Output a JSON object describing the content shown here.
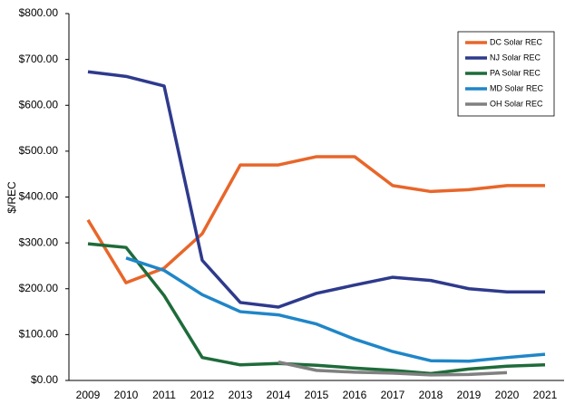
{
  "chart_data": {
    "type": "line",
    "y_label": "$/REC",
    "categories": [
      "2009",
      "2010",
      "2011",
      "2012",
      "2013",
      "2014",
      "2015",
      "2016",
      "2017",
      "2018",
      "2019",
      "2020",
      "2021"
    ],
    "series": [
      {
        "name": "DC Solar REC",
        "color": "#e8662a",
        "values": [
          350,
          213,
          245,
          320,
          470,
          470,
          488,
          488,
          425,
          412,
          416,
          425,
          425
        ]
      },
      {
        "name": "NJ Solar REC",
        "color": "#2e3a8c",
        "values": [
          673,
          663,
          642,
          262,
          170,
          160,
          190,
          208,
          225,
          218,
          200,
          193,
          193
        ]
      },
      {
        "name": "PA Solar REC",
        "color": "#1e6b3a",
        "values": [
          298,
          290,
          185,
          50,
          34,
          37,
          33,
          27,
          22,
          15,
          25,
          31,
          34
        ]
      },
      {
        "name": "MD Solar REC",
        "color": "#1f86c8",
        "values": [
          null,
          267,
          240,
          187,
          150,
          143,
          123,
          90,
          63,
          43,
          42,
          50,
          57
        ]
      },
      {
        "name": "OH Solar REC",
        "color": "#808080",
        "values": [
          null,
          null,
          null,
          null,
          null,
          40,
          22,
          18,
          16,
          12,
          13,
          17,
          null
        ]
      }
    ],
    "ylim": [
      0,
      800
    ],
    "yticks": [
      {
        "value": 0,
        "label": "$0.00"
      },
      {
        "value": 100,
        "label": "$100.00"
      },
      {
        "value": 200,
        "label": "$200.00"
      },
      {
        "value": 300,
        "label": "$300.00"
      },
      {
        "value": 400,
        "label": "$400.00"
      },
      {
        "value": 500,
        "label": "$500.00"
      },
      {
        "value": 600,
        "label": "$600.00"
      },
      {
        "value": 700,
        "label": "$700.00"
      },
      {
        "value": 800,
        "label": "$800.00"
      }
    ],
    "grid": false,
    "legend": "top-right"
  }
}
